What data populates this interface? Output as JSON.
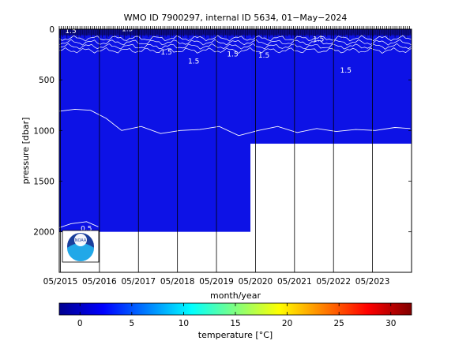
{
  "chart_data": {
    "type": "heatmap",
    "title": "WMO ID 7900297, internal ID 5634, 01−May−2024",
    "xlabel": "month/year",
    "ylabel": "pressure [dbar]",
    "colorbar_label": "temperature [°C]",
    "x_tick_labels": [
      "05/2015",
      "05/2016",
      "05/2017",
      "05/2018",
      "05/2019",
      "05/2020",
      "05/2021",
      "05/2022",
      "05/2023"
    ],
    "x_tick_years": [
      2015.33,
      2016.33,
      2017.33,
      2018.33,
      2019.33,
      2020.33,
      2021.33,
      2022.33,
      2023.33
    ],
    "xlim": [
      2015.3,
      2024.33
    ],
    "y_ticks": [
      0,
      500,
      1000,
      1500,
      2000
    ],
    "ylim": [
      0,
      2400
    ],
    "y_reversed": true,
    "colorbar_ticks": [
      0,
      5,
      10,
      15,
      20,
      25,
      30
    ],
    "colorbar_range": [
      -2,
      32
    ],
    "colormap": "jet",
    "profile_depth_segments": [
      {
        "x_start": 2015.3,
        "x_end": 2020.2,
        "max_pressure": 2000
      },
      {
        "x_start": 2020.2,
        "x_end": 2024.33,
        "max_pressure": 1130
      }
    ],
    "contour_labels": [
      "1.5",
      "1.5",
      "1.5",
      "1.5",
      "1.5",
      "1.5",
      "1.5",
      "1.5",
      "0.5"
    ],
    "contour_1p5_pressure": [
      {
        "x": 2015.3,
        "y": 810
      },
      {
        "x": 2015.7,
        "y": 790
      },
      {
        "x": 2016.1,
        "y": 800
      },
      {
        "x": 2016.5,
        "y": 880
      },
      {
        "x": 2016.9,
        "y": 1000
      },
      {
        "x": 2017.4,
        "y": 960
      },
      {
        "x": 2017.9,
        "y": 1030
      },
      {
        "x": 2018.4,
        "y": 1000
      },
      {
        "x": 2018.9,
        "y": 990
      },
      {
        "x": 2019.4,
        "y": 960
      },
      {
        "x": 2019.9,
        "y": 1050
      },
      {
        "x": 2020.4,
        "y": 1000
      },
      {
        "x": 2020.9,
        "y": 960
      },
      {
        "x": 2021.4,
        "y": 1020
      },
      {
        "x": 2021.9,
        "y": 980
      },
      {
        "x": 2022.4,
        "y": 1010
      },
      {
        "x": 2022.9,
        "y": 990
      },
      {
        "x": 2023.4,
        "y": 1000
      },
      {
        "x": 2023.9,
        "y": 970
      },
      {
        "x": 2024.3,
        "y": 980
      }
    ],
    "contour_0p5_pressure": [
      {
        "x": 2015.3,
        "y": 1960
      },
      {
        "x": 2015.6,
        "y": 1920
      },
      {
        "x": 2016.0,
        "y": 1900
      },
      {
        "x": 2016.3,
        "y": 1950
      }
    ],
    "grid": false,
    "colors": {
      "deep_fill": "#0d12e6",
      "surface_fill": "#0c0c8a",
      "contour": "#ffffff"
    }
  },
  "logo": {
    "text": "NOAA"
  }
}
